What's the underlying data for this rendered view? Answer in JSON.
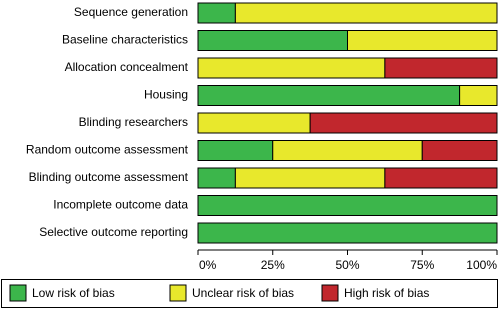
{
  "chart_data": {
    "type": "stacked-bar-horizontal",
    "categories": [
      "Sequence generation",
      "Baseline characteristics",
      "Allocation concealment",
      "Housing",
      "Blinding researchers",
      "Random outcome assessment",
      "Blinding outcome assessment",
      "Incomplete outcome data",
      "Selective outcome reporting"
    ],
    "series": [
      {
        "name": "Low risk of bias",
        "color": "#3cb64b",
        "values": [
          12.5,
          50,
          0,
          87.5,
          0,
          25,
          12.5,
          100,
          100
        ]
      },
      {
        "name": "Unclear risk of bias",
        "color": "#e8e82c",
        "values": [
          87.5,
          50,
          62.5,
          12.5,
          37.5,
          50,
          50,
          0,
          0
        ]
      },
      {
        "name": "High risk of bias",
        "color": "#c1272d",
        "values": [
          0,
          0,
          37.5,
          0,
          62.5,
          25,
          37.5,
          0,
          0
        ]
      }
    ],
    "xlim": [
      0,
      100
    ],
    "xticks": [
      {
        "value": 0,
        "label": "0%"
      },
      {
        "value": 25,
        "label": "25%"
      },
      {
        "value": 50,
        "label": "50%"
      },
      {
        "value": 75,
        "label": "75%"
      },
      {
        "value": 100,
        "label": "100%"
      }
    ]
  }
}
